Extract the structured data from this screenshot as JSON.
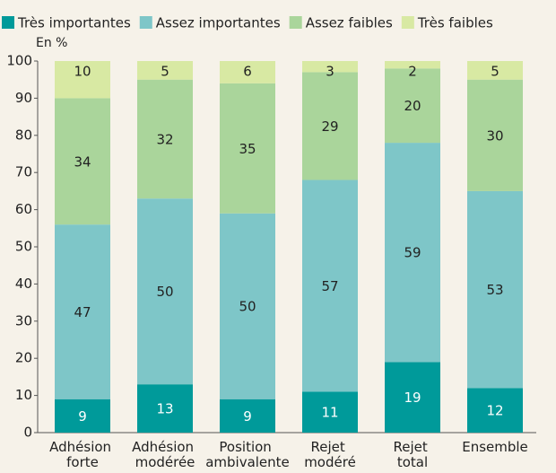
{
  "chart_data": {
    "type": "stacked_bar",
    "y_label": "En %",
    "categories": [
      "Adhésion forte",
      "Adhésion modérée",
      "Position ambivalente",
      "Rejet modéré",
      "Rejet total",
      "Ensemble"
    ],
    "series": [
      {
        "name": "Très importantes",
        "color": "#009a9a",
        "values": [
          9,
          13,
          9,
          11,
          19,
          12
        ]
      },
      {
        "name": "Assez importantes",
        "color": "#7ec6c8",
        "values": [
          47,
          50,
          50,
          57,
          59,
          53
        ]
      },
      {
        "name": "Assez faibles",
        "color": "#aad59b",
        "values": [
          34,
          32,
          35,
          29,
          20,
          30
        ]
      },
      {
        "name": "Très faibles",
        "color": "#d8e9a3",
        "values": [
          10,
          5,
          6,
          3,
          2,
          5
        ]
      }
    ],
    "ylim": [
      0,
      100
    ],
    "yticks": [
      0,
      10,
      20,
      30,
      40,
      50,
      60,
      70,
      80,
      90,
      100
    ]
  }
}
